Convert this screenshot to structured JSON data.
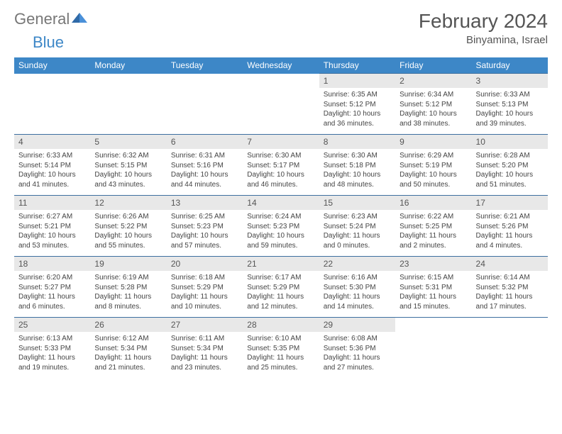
{
  "logo": {
    "text1": "General",
    "text2": "Blue"
  },
  "title": "February 2024",
  "location": "Binyamina, Israel",
  "colors": {
    "header_bg": "#3d87c7",
    "header_text": "#ffffff",
    "daynum_bg": "#e8e8e8",
    "cell_border": "#3d6fa0",
    "body_text": "#444444",
    "title_text": "#555555"
  },
  "weekdays": [
    "Sunday",
    "Monday",
    "Tuesday",
    "Wednesday",
    "Thursday",
    "Friday",
    "Saturday"
  ],
  "weeks": [
    [
      null,
      null,
      null,
      null,
      {
        "d": "1",
        "sr": "6:35 AM",
        "ss": "5:12 PM",
        "dl": "10 hours and 36 minutes."
      },
      {
        "d": "2",
        "sr": "6:34 AM",
        "ss": "5:12 PM",
        "dl": "10 hours and 38 minutes."
      },
      {
        "d": "3",
        "sr": "6:33 AM",
        "ss": "5:13 PM",
        "dl": "10 hours and 39 minutes."
      }
    ],
    [
      {
        "d": "4",
        "sr": "6:33 AM",
        "ss": "5:14 PM",
        "dl": "10 hours and 41 minutes."
      },
      {
        "d": "5",
        "sr": "6:32 AM",
        "ss": "5:15 PM",
        "dl": "10 hours and 43 minutes."
      },
      {
        "d": "6",
        "sr": "6:31 AM",
        "ss": "5:16 PM",
        "dl": "10 hours and 44 minutes."
      },
      {
        "d": "7",
        "sr": "6:30 AM",
        "ss": "5:17 PM",
        "dl": "10 hours and 46 minutes."
      },
      {
        "d": "8",
        "sr": "6:30 AM",
        "ss": "5:18 PM",
        "dl": "10 hours and 48 minutes."
      },
      {
        "d": "9",
        "sr": "6:29 AM",
        "ss": "5:19 PM",
        "dl": "10 hours and 50 minutes."
      },
      {
        "d": "10",
        "sr": "6:28 AM",
        "ss": "5:20 PM",
        "dl": "10 hours and 51 minutes."
      }
    ],
    [
      {
        "d": "11",
        "sr": "6:27 AM",
        "ss": "5:21 PM",
        "dl": "10 hours and 53 minutes."
      },
      {
        "d": "12",
        "sr": "6:26 AM",
        "ss": "5:22 PM",
        "dl": "10 hours and 55 minutes."
      },
      {
        "d": "13",
        "sr": "6:25 AM",
        "ss": "5:23 PM",
        "dl": "10 hours and 57 minutes."
      },
      {
        "d": "14",
        "sr": "6:24 AM",
        "ss": "5:23 PM",
        "dl": "10 hours and 59 minutes."
      },
      {
        "d": "15",
        "sr": "6:23 AM",
        "ss": "5:24 PM",
        "dl": "11 hours and 0 minutes."
      },
      {
        "d": "16",
        "sr": "6:22 AM",
        "ss": "5:25 PM",
        "dl": "11 hours and 2 minutes."
      },
      {
        "d": "17",
        "sr": "6:21 AM",
        "ss": "5:26 PM",
        "dl": "11 hours and 4 minutes."
      }
    ],
    [
      {
        "d": "18",
        "sr": "6:20 AM",
        "ss": "5:27 PM",
        "dl": "11 hours and 6 minutes."
      },
      {
        "d": "19",
        "sr": "6:19 AM",
        "ss": "5:28 PM",
        "dl": "11 hours and 8 minutes."
      },
      {
        "d": "20",
        "sr": "6:18 AM",
        "ss": "5:29 PM",
        "dl": "11 hours and 10 minutes."
      },
      {
        "d": "21",
        "sr": "6:17 AM",
        "ss": "5:29 PM",
        "dl": "11 hours and 12 minutes."
      },
      {
        "d": "22",
        "sr": "6:16 AM",
        "ss": "5:30 PM",
        "dl": "11 hours and 14 minutes."
      },
      {
        "d": "23",
        "sr": "6:15 AM",
        "ss": "5:31 PM",
        "dl": "11 hours and 15 minutes."
      },
      {
        "d": "24",
        "sr": "6:14 AM",
        "ss": "5:32 PM",
        "dl": "11 hours and 17 minutes."
      }
    ],
    [
      {
        "d": "25",
        "sr": "6:13 AM",
        "ss": "5:33 PM",
        "dl": "11 hours and 19 minutes."
      },
      {
        "d": "26",
        "sr": "6:12 AM",
        "ss": "5:34 PM",
        "dl": "11 hours and 21 minutes."
      },
      {
        "d": "27",
        "sr": "6:11 AM",
        "ss": "5:34 PM",
        "dl": "11 hours and 23 minutes."
      },
      {
        "d": "28",
        "sr": "6:10 AM",
        "ss": "5:35 PM",
        "dl": "11 hours and 25 minutes."
      },
      {
        "d": "29",
        "sr": "6:08 AM",
        "ss": "5:36 PM",
        "dl": "11 hours and 27 minutes."
      },
      null,
      null
    ]
  ],
  "labels": {
    "sunrise": "Sunrise:",
    "sunset": "Sunset:",
    "daylight": "Daylight:"
  }
}
